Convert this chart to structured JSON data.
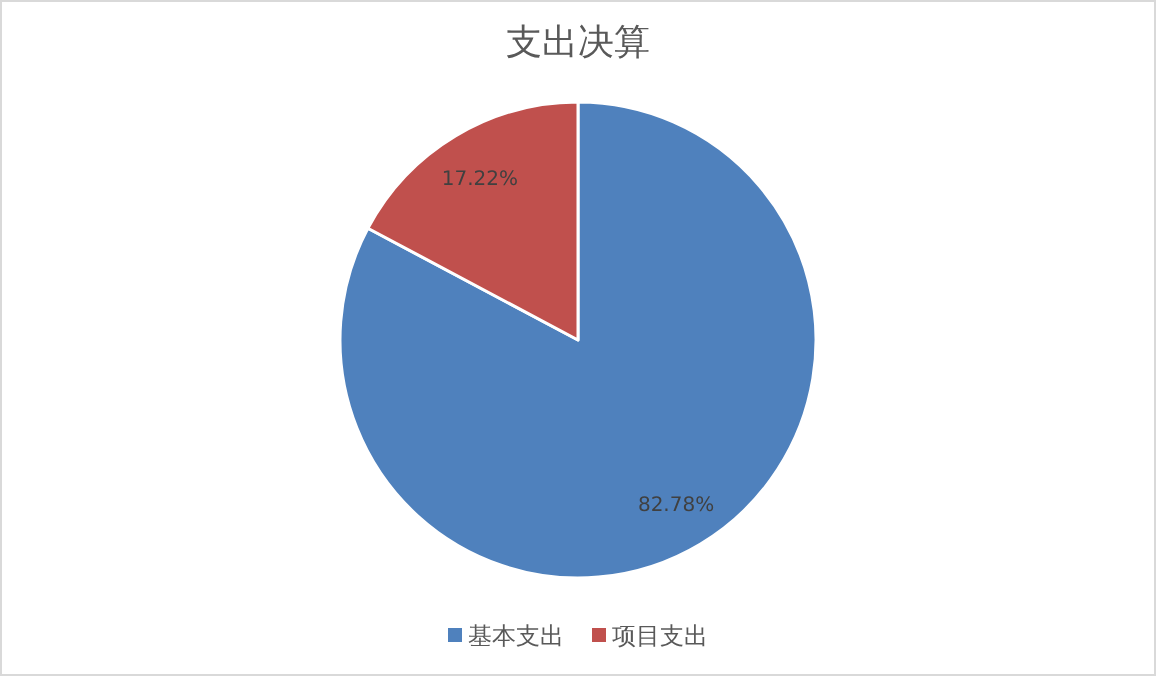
{
  "chart_data": {
    "type": "pie",
    "title": "支出决算",
    "categories": [
      "基本支出",
      "项目支出"
    ],
    "values": [
      82.78,
      17.22
    ],
    "colors": [
      "#4f81bd",
      "#c0504d"
    ],
    "value_labels": [
      "82.78%",
      "17.22%"
    ],
    "legend": "bottom"
  }
}
